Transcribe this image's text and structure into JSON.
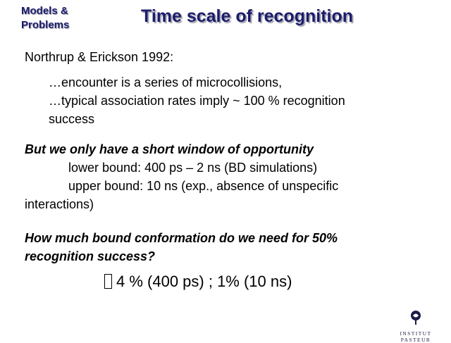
{
  "header": {
    "section_tag": [
      "Models &",
      "Problems"
    ],
    "title": "Time scale of recognition"
  },
  "content": {
    "citation": "Northrup & Erickson 1992:",
    "points": [
      "…encounter is a series of microcollisions,",
      "…typical association rates imply ~ 100 % recognition",
      "success"
    ],
    "window_heading": "But we only have a short window of opportunity",
    "bounds": [
      "lower bound: 400 ps – 2 ns (BD simulations)",
      "upper bound: 10 ns (exp., absence of unspecific",
      "interactions)"
    ],
    "question": [
      "How much bound conformation do we need for 50%",
      "recognition success?"
    ],
    "result": "4 % (400 ps) ; 1% (10 ns)"
  },
  "logo": {
    "icon": "institut-pasteur-emblem-icon",
    "text": "INSTITUT PASTEUR"
  }
}
